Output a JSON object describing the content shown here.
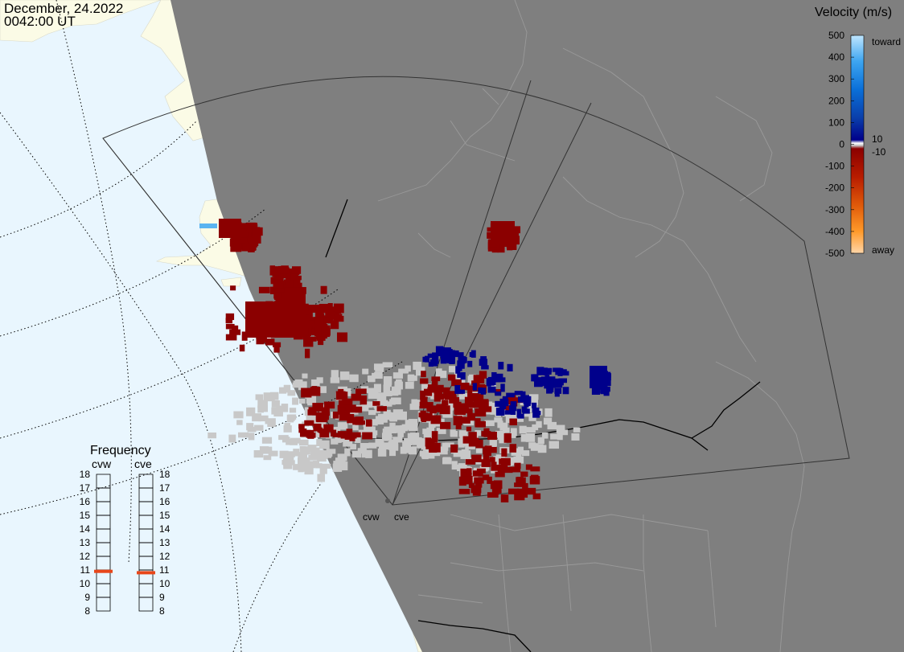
{
  "header": {
    "date": "December, 24.2022",
    "time": "0042:00 UT"
  },
  "colors": {
    "ocean": "#e9f6fe",
    "land": "#fbfbe6",
    "night": "#7f7f7f",
    "ground_scatter": "#c8c8c8",
    "away_strong": "#8b0000",
    "toward_strong": "#00008b",
    "frequency_marker": "#e8461a"
  },
  "velocity_scale": {
    "title": "Velocity (m/s)",
    "ticks": [
      "500",
      "400",
      "300",
      "200",
      "100",
      "0",
      "-100",
      "-200",
      "-300",
      "-400",
      "-500"
    ],
    "inner_labels": [
      "10",
      "-10"
    ],
    "toward_label": "toward",
    "away_label": "away"
  },
  "frequency_panel": {
    "title": "Frequency",
    "radars": [
      {
        "name": "cvw",
        "frequency_mhz": 10.9
      },
      {
        "name": "cve",
        "frequency_mhz": 10.8
      }
    ],
    "ticks": [
      "18",
      "17",
      "16",
      "15",
      "14",
      "13",
      "12",
      "11",
      "10",
      "9",
      "8"
    ]
  },
  "radar_sites": {
    "labels": [
      "cvw",
      "cve"
    ]
  }
}
